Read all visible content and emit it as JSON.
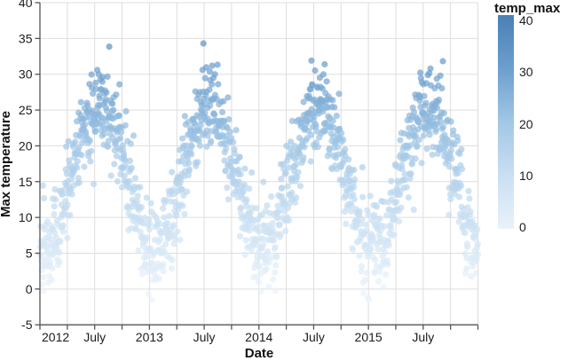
{
  "chart_data": {
    "type": "scatter",
    "title": "",
    "xlabel": "Date",
    "ylabel": "Max temperature",
    "x_domain": [
      "2012-01-01",
      "2016-01-01"
    ],
    "n_days": 1461,
    "ylim": [
      -5,
      40
    ],
    "y_ticks": [
      -5,
      0,
      5,
      10,
      15,
      20,
      25,
      30,
      35,
      40
    ],
    "x_tick_labels": [
      {
        "label": "2012",
        "month": 0
      },
      {
        "label": "July",
        "month": 6
      },
      {
        "label": "2013",
        "month": 12
      },
      {
        "label": "July",
        "month": 18
      },
      {
        "label": "2014",
        "month": 24
      },
      {
        "label": "July",
        "month": 30
      },
      {
        "label": "2015",
        "month": 36
      },
      {
        "label": "July",
        "month": 42
      }
    ],
    "x_minor_tick_every_months": 3,
    "x_total_months": 48,
    "grid": true,
    "color_field": "temp_max",
    "color_domain": [
      0,
      40
    ],
    "color_stops": [
      "#e9f2fb",
      "#c9dff2",
      "#a2c7e6",
      "#6d9fcd",
      "#4a80b6"
    ],
    "legend": {
      "title": "temp_max",
      "position": "right",
      "ticks": [
        40,
        30,
        20,
        10,
        0
      ]
    },
    "point": {
      "radius": 3.6,
      "opacity": 0.7
    },
    "seasonal_model": {
      "comment_free_params_read_from_chart": true,
      "mean": 15.6,
      "amplitude": 9.9,
      "peak_day_of_year": 199,
      "period_days": 365.25,
      "noise_sd": 3.1,
      "hot_spike_prob": 0.012,
      "hot_spike_max": 6,
      "cold_snap_prob": 0.012,
      "cold_snap_max": 5,
      "clamp_min": -1.5,
      "clamp_max": 35.8,
      "seed": 20120101
    },
    "style": {
      "background": "#ffffff",
      "grid_color": "#dddddd",
      "axis_color": "#555555",
      "tick_color": "#555555",
      "label_color": "#1c1c1c"
    }
  }
}
